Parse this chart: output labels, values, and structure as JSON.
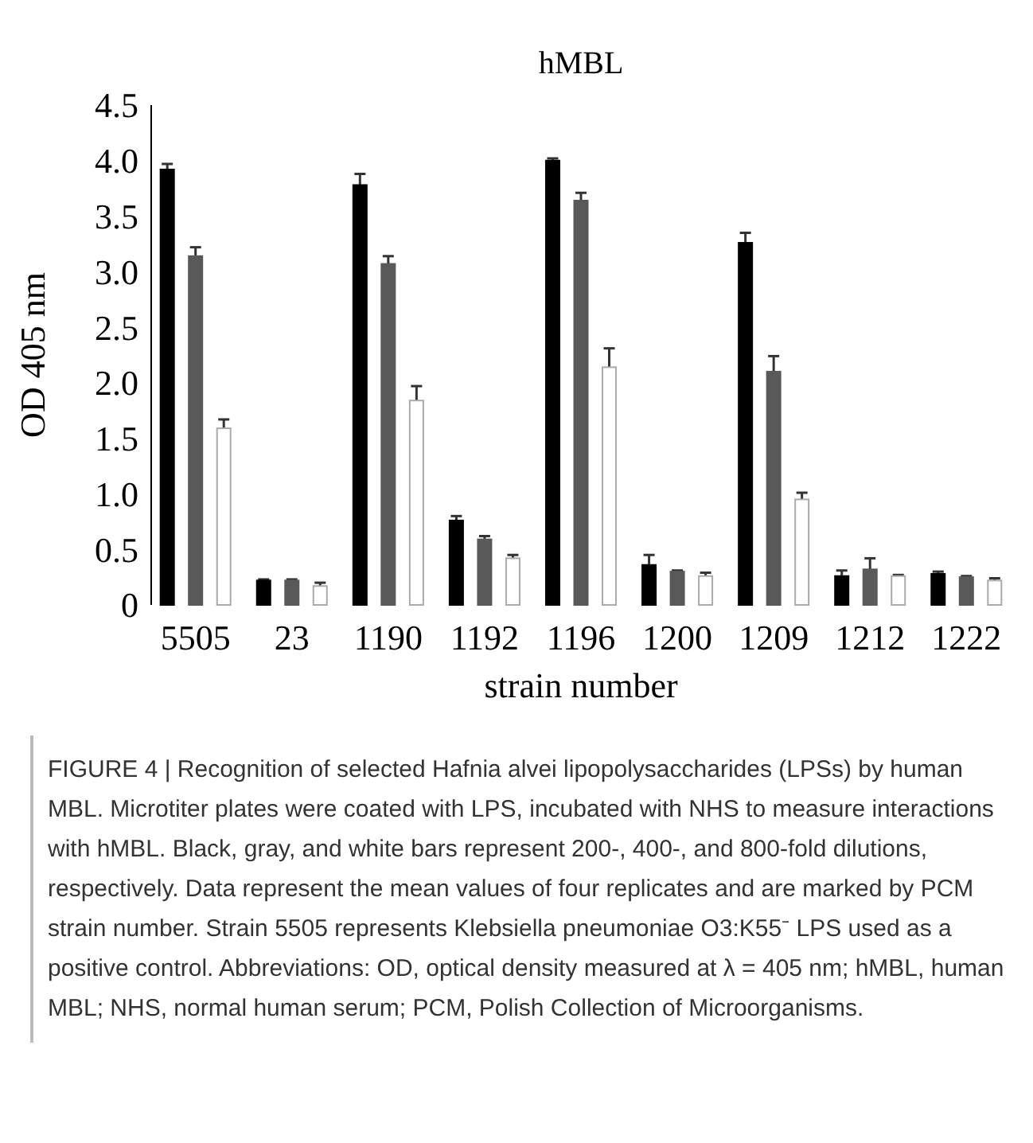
{
  "chart_data": {
    "type": "bar",
    "title": "hMBL",
    "xlabel": "strain number",
    "ylabel": "OD 405 nm",
    "categories": [
      "5505",
      "23",
      "1190",
      "1192",
      "1196",
      "1200",
      "1209",
      "1212",
      "1222"
    ],
    "series": [
      {
        "color": "#000000",
        "values": [
          3.92,
          0.22,
          3.78,
          0.76,
          4.0,
          0.36,
          3.26,
          0.26,
          0.28
        ],
        "errors": [
          [
            3.92,
            3.97
          ],
          [
            0.22,
            0.23
          ],
          [
            3.78,
            3.88
          ],
          [
            0.76,
            0.8
          ],
          [
            4.0,
            4.02
          ],
          [
            0.36,
            0.45
          ],
          [
            3.26,
            3.35
          ],
          [
            0.26,
            0.31
          ],
          [
            0.28,
            0.3
          ]
        ]
      },
      {
        "color": "#595959",
        "values": [
          3.14,
          0.22,
          3.07,
          0.59,
          3.64,
          0.3,
          2.1,
          0.32,
          0.25
        ],
        "errors": [
          [
            3.14,
            3.22
          ],
          [
            0.22,
            0.23
          ],
          [
            3.07,
            3.14
          ],
          [
            0.59,
            0.62
          ],
          [
            3.64,
            3.71
          ],
          [
            0.3,
            0.31
          ],
          [
            2.1,
            2.24
          ],
          [
            0.32,
            0.42
          ],
          [
            0.25,
            0.26
          ]
        ]
      },
      {
        "color": "#ffffff",
        "values": [
          1.59,
          0.17,
          1.84,
          0.42,
          2.14,
          0.26,
          0.95,
          0.26,
          0.22
        ],
        "errors": [
          [
            1.59,
            1.67
          ],
          [
            0.17,
            0.2
          ],
          [
            1.84,
            1.97
          ],
          [
            0.42,
            0.45
          ],
          [
            2.14,
            2.31
          ],
          [
            0.26,
            0.29
          ],
          [
            0.95,
            1.01
          ],
          [
            0.26,
            0.27
          ],
          [
            0.22,
            0.24
          ]
        ]
      }
    ],
    "ylim": [
      0,
      4.5
    ],
    "yticks": [
      0,
      0.5,
      {
        "value": 1,
        "label": "1.0"
      },
      1.5,
      {
        "value": 2,
        "label": "2.0"
      },
      2.5,
      {
        "value": 3,
        "label": "3.0"
      },
      3.5,
      {
        "value": 4,
        "label": "4.0"
      },
      4.5
    ],
    "grid": false,
    "annotations": [
      "FIGURE 4 | Recognition of selected Hafnia alvei lipopolysaccharides (LPSs) by human MBL. Microtiter plates were coated with LPS, incubated with NHS to measure interactions with hMBL. Black, gray, and white bars represent 200-, 400-, and 800-fold dilutions, respectively. Data represent the mean values of four replicates and are marked by PCM strain number. Strain 5505 represents Klebsiella pneumoniae O3:K55⁻ LPS used as a positive control. Abbreviations: OD, optical density measured at λ = 405 nm; hMBL, human MBL; NHS, normal human serum; PCM, Polish Collection of Microorganisms."
    ]
  }
}
